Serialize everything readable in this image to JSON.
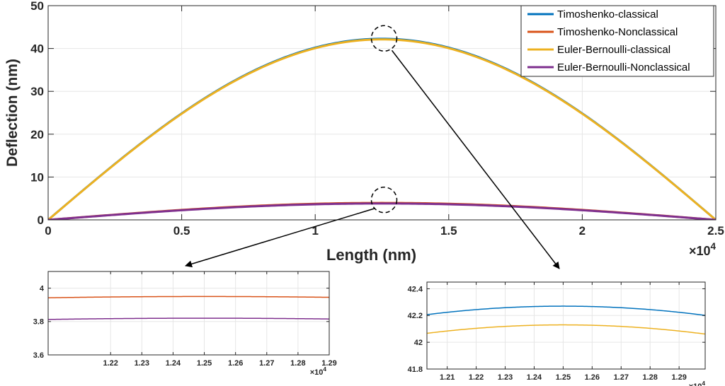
{
  "colors": {
    "timoshenko_classical": "#0072BD",
    "timoshenko_nonclassical": "#D95319",
    "euler_classical": "#EDB120",
    "euler_nonclassical": "#7E2F8E",
    "grid": "#e6e6e6",
    "axis": "#262626"
  },
  "chart_data": [
    {
      "id": "main",
      "type": "line",
      "title": "",
      "xlabel": "Length (nm)",
      "ylabel": "Deflection (nm)",
      "xlim": [
        0,
        25000
      ],
      "ylim": [
        0,
        50
      ],
      "x_ticks": [
        0,
        5000,
        10000,
        15000,
        20000,
        25000
      ],
      "x_tick_labels": [
        "0",
        "0.5",
        "1",
        "1.5",
        "2",
        "2.5"
      ],
      "x_exponent_base": "×10",
      "x_exponent": "4",
      "y_ticks": [
        0,
        10,
        20,
        30,
        40,
        50
      ],
      "y_tick_labels": [
        "0",
        "10",
        "20",
        "30",
        "40",
        "50"
      ],
      "grid": true,
      "legend_position": "top-right",
      "series": [
        {
          "name": "Timoshenko-classical",
          "color_key": "timoshenko_classical",
          "shape": "sine",
          "peak": 42.27,
          "x_max": 25000
        },
        {
          "name": "Timoshenko-Nonclassical",
          "color_key": "timoshenko_nonclassical",
          "shape": "sine",
          "peak": 3.95,
          "x_max": 25000
        },
        {
          "name": "Euler-Bernoulli-classical",
          "color_key": "euler_classical",
          "shape": "sine",
          "peak": 42.13,
          "x_max": 25000
        },
        {
          "name": "Euler-Bernoulli-Nonclassical",
          "color_key": "euler_nonclassical",
          "shape": "sine",
          "peak": 3.82,
          "x_max": 25000
        }
      ]
    },
    {
      "id": "zoom-nonclassical",
      "type": "line",
      "xlim": [
        12000,
        12900
      ],
      "ylim": [
        3.6,
        4.1
      ],
      "x_ticks": [
        12200,
        12300,
        12400,
        12500,
        12600,
        12700,
        12800,
        12900
      ],
      "x_tick_labels": [
        "1.22",
        "1.23",
        "1.24",
        "1.25",
        "1.26",
        "1.27",
        "1.28",
        "1.29"
      ],
      "x_exponent_base": "×10",
      "x_exponent": "4",
      "y_ticks": [
        3.6,
        3.8,
        4.0
      ],
      "y_tick_labels": [
        "3.6",
        "3.8",
        "4"
      ],
      "grid": true,
      "series": [
        {
          "name": "Timoshenko-Nonclassical",
          "color_key": "timoshenko_nonclassical",
          "shape": "sine",
          "peak": 3.95,
          "x_max": 25000
        },
        {
          "name": "Euler-Bernoulli-Nonclassical",
          "color_key": "euler_nonclassical",
          "shape": "sine",
          "peak": 3.82,
          "x_max": 25000
        }
      ]
    },
    {
      "id": "zoom-classical",
      "type": "line",
      "xlim": [
        12030,
        12990
      ],
      "ylim": [
        41.8,
        42.45
      ],
      "x_ticks": [
        12100,
        12200,
        12300,
        12400,
        12500,
        12600,
        12700,
        12800,
        12900
      ],
      "x_tick_labels": [
        "1.21",
        "1.22",
        "1.23",
        "1.24",
        "1.25",
        "1.26",
        "1.27",
        "1.28",
        "1.29"
      ],
      "x_exponent_base": "×10",
      "x_exponent": "4",
      "y_ticks": [
        41.8,
        42.0,
        42.2,
        42.4
      ],
      "y_tick_labels": [
        "41.8",
        "42",
        "42.2",
        "42.4"
      ],
      "grid": true,
      "series": [
        {
          "name": "Timoshenko-classical",
          "color_key": "timoshenko_classical",
          "shape": "sine",
          "peak": 42.27,
          "x_max": 25000,
          "curvature": 0.43
        },
        {
          "name": "Euler-Bernoulli-classical",
          "color_key": "euler_classical",
          "shape": "sine",
          "peak": 42.13,
          "x_max": 25000,
          "curvature": 0.43
        }
      ]
    }
  ]
}
